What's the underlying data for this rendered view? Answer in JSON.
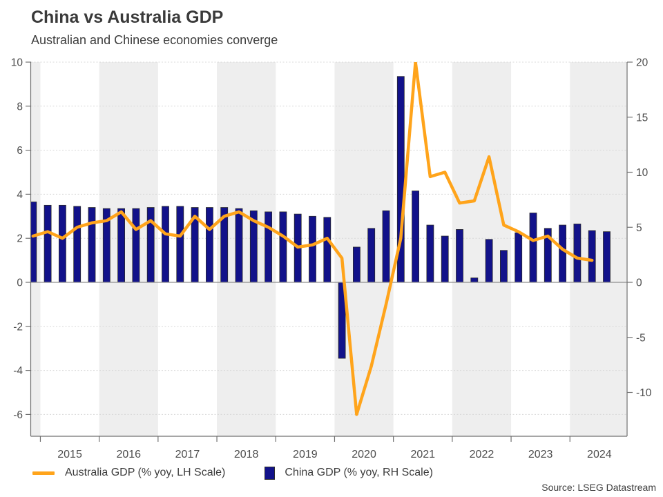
{
  "header": {
    "title": "China vs Australia GDP",
    "subtitle": "Australian and Chinese economies converge"
  },
  "legend": {
    "australia_label": "Australia GDP (% yoy, LH Scale)",
    "china_label": "China GDP (% yoy, RH Scale)"
  },
  "source_text": "Source: LSEG Datastream",
  "colors": {
    "australia_line": "#ffa41b",
    "china_bar": "#12128a",
    "bar_outline": "#2b2b2b",
    "band_gray": "#eeeeee",
    "gridline": "#d8d8d8",
    "axis": "#707070",
    "zero_line": "#8f8f8f",
    "tick_text": "#4d4d4d"
  },
  "chart_data": {
    "type": "bar",
    "subtype": "dual-axis quarterly bar + line",
    "title": "China vs Australia GDP",
    "subtitle": "Australian and Chinese economies converge",
    "frequency": "quarterly",
    "x_first_quarter": "2014-Q4",
    "x_years": [
      2015,
      2016,
      2017,
      2018,
      2019,
      2020,
      2021,
      2022,
      2023,
      2024
    ],
    "shaded_years": [
      2016,
      2018,
      2020,
      2022,
      2024
    ],
    "grid": "horizontal dashed at left-axis ticks",
    "legend_position": "bottom",
    "left_axis": {
      "ticks": [
        10,
        8,
        6,
        4,
        2,
        0,
        -2,
        -4,
        -6
      ],
      "range": [
        -7,
        10
      ]
    },
    "right_axis": {
      "ticks": [
        20,
        15,
        10,
        5,
        0,
        -5,
        -10
      ],
      "range": [
        -14,
        20
      ]
    },
    "series": [
      {
        "name": "China GDP (% yoy, RH Scale)",
        "type": "bar",
        "axis": "right",
        "color": "#12128a",
        "values": [
          7.3,
          7.0,
          7.0,
          6.9,
          6.8,
          6.7,
          6.7,
          6.7,
          6.8,
          6.9,
          6.9,
          6.8,
          6.8,
          6.8,
          6.7,
          6.5,
          6.4,
          6.4,
          6.2,
          6.0,
          5.9,
          -6.9,
          3.2,
          4.9,
          6.5,
          18.7,
          8.3,
          5.2,
          4.2,
          4.8,
          0.4,
          3.9,
          2.9,
          4.5,
          6.3,
          4.9,
          5.2,
          5.3,
          4.7,
          4.6
        ]
      },
      {
        "name": "Australia GDP (% yoy, LH Scale)",
        "type": "line",
        "axis": "left",
        "color": "#ffa41b",
        "values": [
          2.1,
          2.3,
          2.0,
          2.5,
          2.7,
          2.8,
          3.2,
          2.4,
          2.8,
          2.2,
          2.1,
          3.0,
          2.4,
          3.0,
          3.2,
          2.8,
          2.5,
          2.1,
          1.6,
          1.7,
          2.0,
          1.1,
          -6.0,
          -3.8,
          -1.0,
          2.0,
          10.0,
          4.8,
          5.0,
          3.6,
          3.7,
          5.7,
          2.6,
          2.3,
          1.9,
          2.1,
          1.5,
          1.1,
          1.0
        ]
      }
    ]
  }
}
